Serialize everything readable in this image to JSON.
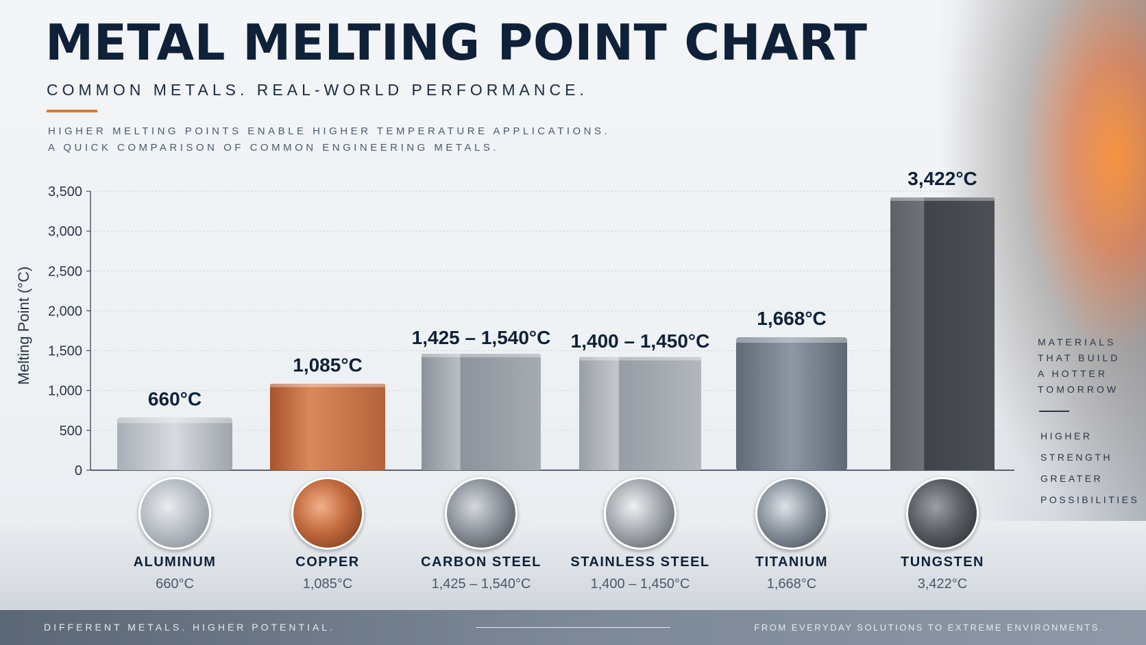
{
  "title": "METAL MELTING POINT CHART",
  "subtitle": "COMMON METALS. REAL-WORLD PERFORMANCE.",
  "intro": [
    "HIGHER MELTING POINTS ENABLE HIGHER TEMPERATURE APPLICATIONS.",
    "A QUICK COMPARISON OF COMMON ENGINEERING METALS."
  ],
  "colors": {
    "accent": "#e0762a",
    "title": "#0f2138",
    "aluminum": "#b9bec4",
    "copper": "#c26a3e",
    "carbon_steel": "#9aa0a8",
    "stainless_steel": "#a3a8ae",
    "titanium": "#7a8593",
    "tungsten": "#4a4e55"
  },
  "chart_data": {
    "type": "bar",
    "ylabel": "Melting Point (°C)",
    "ylim": [
      0,
      3500
    ],
    "yticks": [
      "0",
      "500",
      "1,000",
      "1,500",
      "2,000",
      "2,500",
      "3,000",
      "3,500"
    ],
    "grid": true,
    "categories": [
      "ALUMINUM",
      "COPPER",
      "CARBON STEEL",
      "STAINLESS STEEL",
      "TITANIUM",
      "TUNGSTEN"
    ],
    "values": [
      660,
      1085,
      1460,
      1420,
      1668,
      3422
    ],
    "data_labels": [
      "660°C",
      "1,085°C",
      "1,425 – 1,540°C",
      "1,400 – 1,450°C",
      "1,668°C",
      "3,422°C"
    ],
    "ranges": [
      "660°C",
      "1,085°C",
      "1,425 – 1,540°C",
      "1,400 – 1,450°C",
      "1,668°C",
      "3,422°C"
    ]
  },
  "metals": [
    {
      "name": "ALUMINUM",
      "range": "660°C",
      "icon": "aluminum-ingot-icon"
    },
    {
      "name": "COPPER",
      "range": "1,085°C",
      "icon": "copper-bars-icon"
    },
    {
      "name": "CARBON STEEL",
      "range": "1,425 – 1,540°C",
      "icon": "steel-bars-icon"
    },
    {
      "name": "STAINLESS STEEL",
      "range": "1,400 – 1,450°C",
      "icon": "stainless-plates-icon"
    },
    {
      "name": "TITANIUM",
      "range": "1,668°C",
      "icon": "titanium-rods-icon"
    },
    {
      "name": "TUNGSTEN",
      "range": "3,422°C",
      "icon": "tungsten-block-icon"
    }
  ],
  "side_panel": {
    "lines": [
      "MATERIALS",
      "THAT BUILD",
      "A HOTTER",
      "TOMORROW"
    ],
    "tags": [
      "HIGHER",
      "STRENGTH",
      "GREATER",
      "POSSIBILITIES"
    ]
  },
  "footer": {
    "left": "DIFFERENT METALS. HIGHER POTENTIAL.",
    "right": "FROM EVERYDAY SOLUTIONS TO EXTREME ENVIRONMENTS."
  }
}
